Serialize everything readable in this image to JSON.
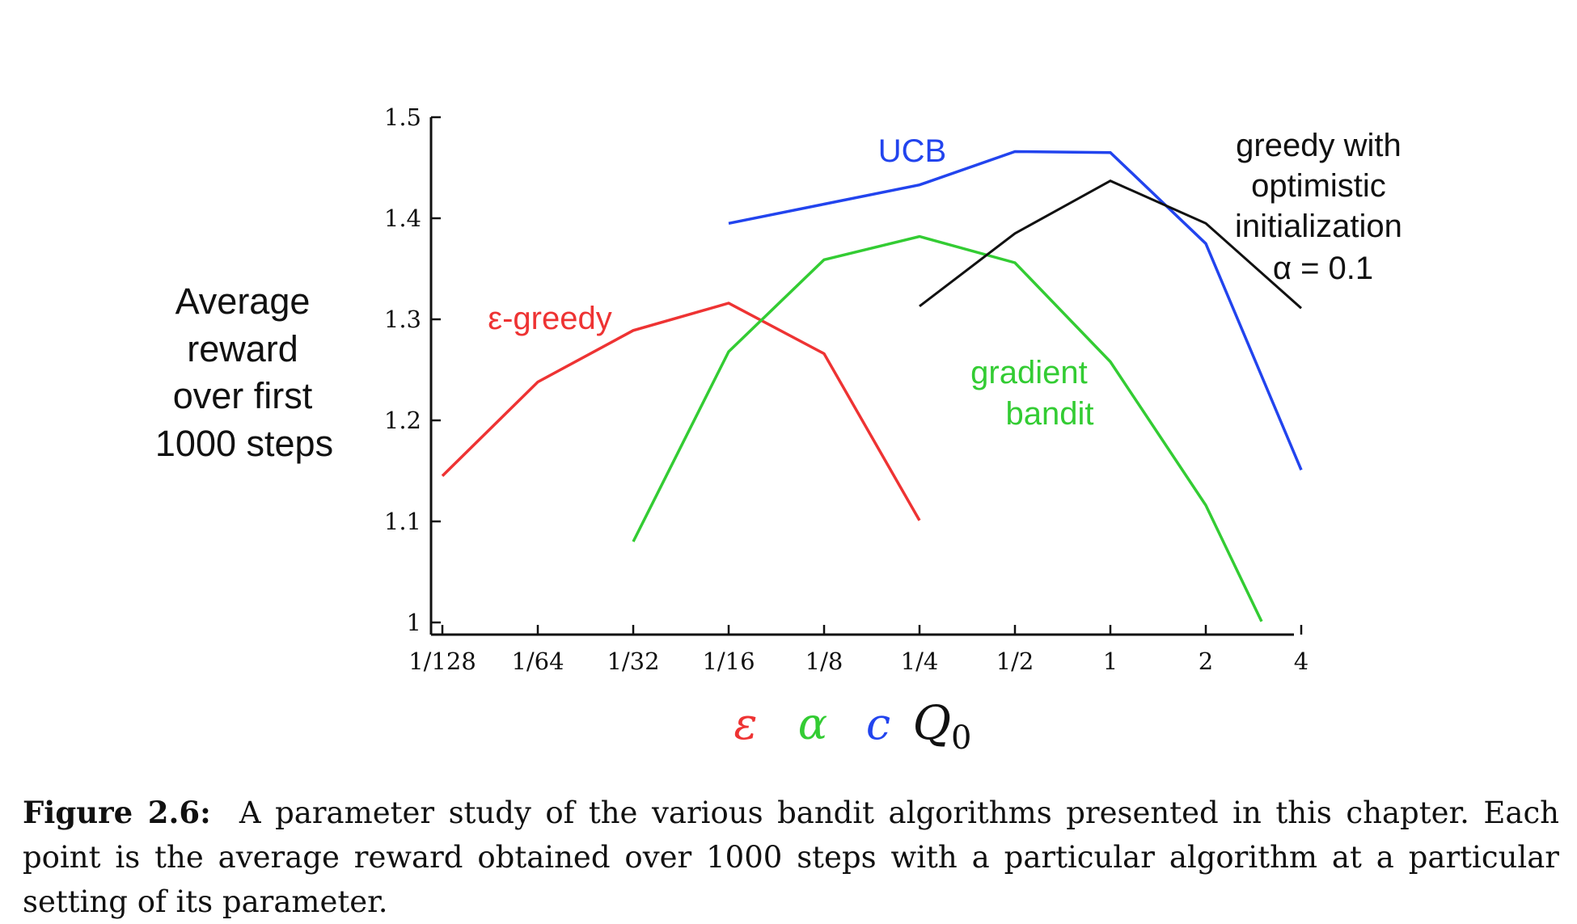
{
  "chart_data": {
    "type": "line",
    "ylabel": [
      "Average",
      "reward",
      "over first",
      "1000 steps"
    ],
    "ylim": [
      1.0,
      1.5
    ],
    "y_ticks": [
      "1",
      "1.1",
      "1.2",
      "1.3",
      "1.4",
      "1.5"
    ],
    "y_tick_values": [
      1.0,
      1.1,
      1.2,
      1.3,
      1.4,
      1.5
    ],
    "x_scale": "log2",
    "x_ticks": [
      "1/128",
      "1/64",
      "1/32",
      "1/16",
      "1/8",
      "1/4",
      "1/2",
      "1",
      "2",
      "4"
    ],
    "x_tick_values": [
      0.0078125,
      0.015625,
      0.03125,
      0.0625,
      0.125,
      0.25,
      0.5,
      1,
      2,
      4
    ],
    "xlabel_symbols": [
      {
        "text": "ε",
        "color": "#ee3333"
      },
      {
        "text": "α",
        "color": "#33cc33"
      },
      {
        "text": "c",
        "color": "#2244ee"
      },
      {
        "text": "Q",
        "sub": "0",
        "color": "#111111"
      }
    ],
    "series": [
      {
        "name": "ε-greedy",
        "color": "#ee3333",
        "x": [
          0.0078125,
          0.015625,
          0.03125,
          0.0625,
          0.125,
          0.25
        ],
        "y": [
          1.145,
          1.238,
          1.289,
          1.316,
          1.266,
          1.101
        ]
      },
      {
        "name": "gradient bandit",
        "label_lines": [
          "gradient",
          "bandit"
        ],
        "color": "#33cc33",
        "x": [
          0.03125,
          0.0625,
          0.125,
          0.25,
          0.5,
          1,
          2,
          3
        ],
        "y": [
          1.08,
          1.268,
          1.359,
          1.382,
          1.356,
          1.258,
          1.116,
          1.001
        ]
      },
      {
        "name": "UCB",
        "color": "#2244ee",
        "x": [
          0.0625,
          0.125,
          0.25,
          0.5,
          1,
          2,
          4
        ],
        "y": [
          1.395,
          1.414,
          1.433,
          1.466,
          1.465,
          1.375,
          1.151
        ]
      },
      {
        "name": "greedy with optimistic initialization α = 0.1",
        "label_lines": [
          "greedy with",
          "optimistic",
          "initialization",
          "α = 0.1"
        ],
        "color": "#111111",
        "x": [
          0.25,
          0.5,
          1,
          2,
          4
        ],
        "y": [
          1.313,
          1.385,
          1.437,
          1.395,
          1.311
        ]
      }
    ]
  },
  "caption": {
    "label": "Figure 2.6:",
    "text": "A parameter study of the various bandit algorithms presented in this chapter. Each point is the average reward obtained over 1000 steps with a particular algorithm at a particular setting of its parameter."
  }
}
